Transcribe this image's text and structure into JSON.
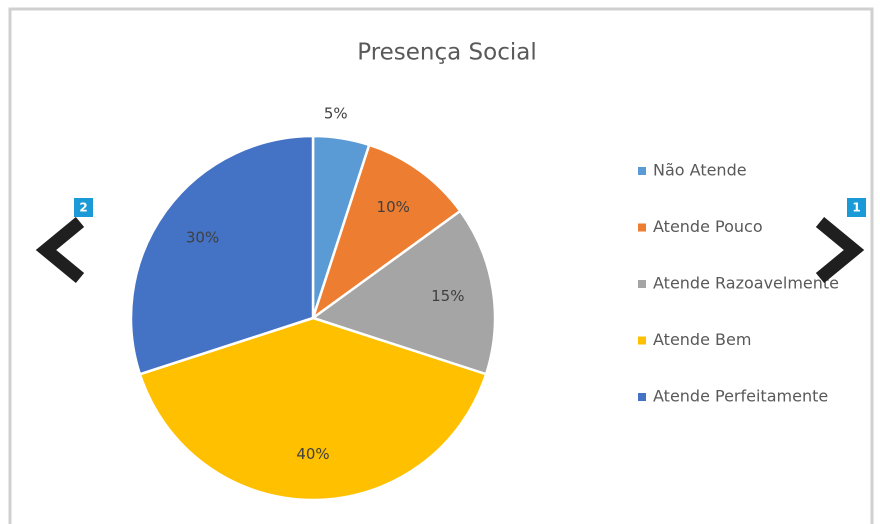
{
  "chart_data": {
    "type": "pie",
    "title": "Presença Social",
    "categories": [
      "Não Atende",
      "Atende Pouco",
      "Atende Razoavelmente",
      "Atende Bem",
      "Atende Perfeitamente"
    ],
    "values": [
      5,
      10,
      15,
      40,
      30
    ],
    "value_labels": [
      "5%",
      "10%",
      "15%",
      "40%",
      "30%"
    ],
    "colors": [
      "#5b9bd5",
      "#ed7d31",
      "#a5a5a5",
      "#ffc000",
      "#4472c4"
    ],
    "legend": "right"
  },
  "navigation": {
    "previous_badge": "2",
    "next_badge": "1"
  }
}
